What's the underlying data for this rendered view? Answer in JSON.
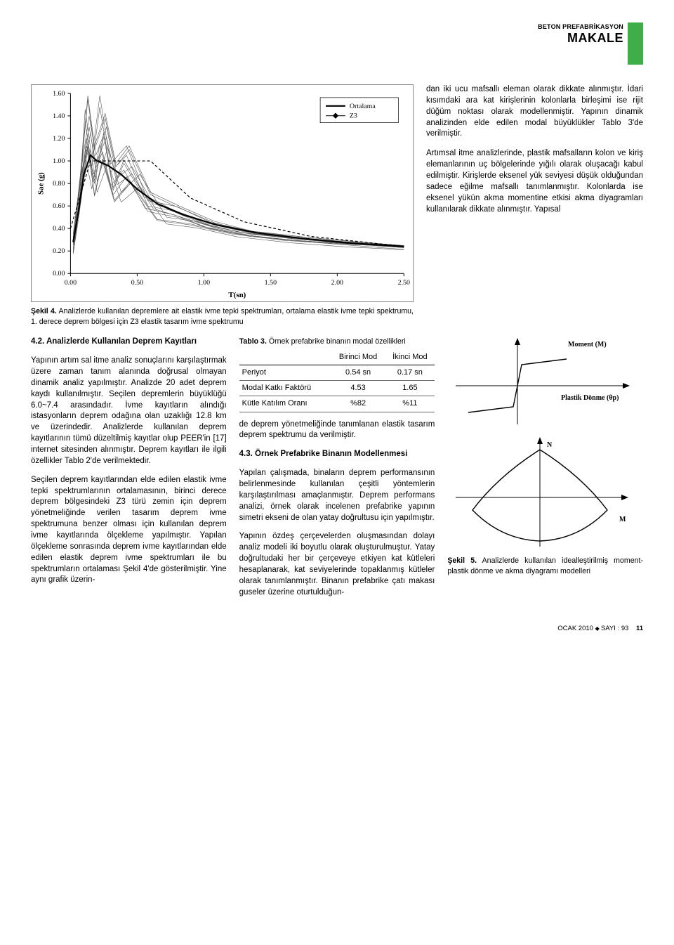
{
  "header": {
    "small": "BETON PREFABRİKASYON",
    "big": "MAKALE",
    "tab_color": "#3fae49"
  },
  "figure4": {
    "type": "line",
    "y_axis_label": "Sae (g)",
    "x_axis_label": "T(sn)",
    "xlim": [
      0,
      2.5
    ],
    "ylim": [
      0,
      1.6
    ],
    "yticks": [
      0.0,
      0.2,
      0.4,
      0.6,
      0.8,
      1.0,
      1.2,
      1.4,
      1.6
    ],
    "ytick_labels": [
      "0.00",
      "0.20",
      "0.40",
      "0.60",
      "0.80",
      "1.00",
      "1.20",
      "1.40",
      "1.60"
    ],
    "xticks": [
      0.0,
      0.5,
      1.0,
      1.5,
      2.0,
      2.5
    ],
    "xtick_labels": [
      "0.00",
      "0.50",
      "1.00",
      "1.50",
      "2.00",
      "2.50"
    ],
    "legend": [
      "Ortalama",
      "Z3"
    ],
    "legend_styles": [
      "thick_black",
      "dash_z3"
    ],
    "background_color": "#ffffff",
    "axis_color": "#000000",
    "thin_line_color": "#555555",
    "avg_line_color": "#000000",
    "avg_line_width": 2.2,
    "thin_line_width": 0.6,
    "z3_dash": "4 3",
    "thin_series_count": 14,
    "thin_series_sample": [
      [
        [
          0.02,
          0.3
        ],
        [
          0.08,
          0.85
        ],
        [
          0.12,
          1.1
        ],
        [
          0.18,
          0.8
        ],
        [
          0.25,
          1.22
        ],
        [
          0.32,
          0.74
        ],
        [
          0.4,
          0.98
        ],
        [
          0.55,
          0.68
        ],
        [
          0.75,
          0.56
        ],
        [
          1.0,
          0.44
        ],
        [
          1.3,
          0.36
        ],
        [
          1.7,
          0.31
        ],
        [
          2.1,
          0.27
        ],
        [
          2.5,
          0.24
        ]
      ],
      [
        [
          0.02,
          0.25
        ],
        [
          0.07,
          0.7
        ],
        [
          0.11,
          1.35
        ],
        [
          0.16,
          0.95
        ],
        [
          0.22,
          1.48
        ],
        [
          0.3,
          0.9
        ],
        [
          0.42,
          1.05
        ],
        [
          0.58,
          0.6
        ],
        [
          0.8,
          0.55
        ],
        [
          1.05,
          0.42
        ],
        [
          1.35,
          0.35
        ],
        [
          1.75,
          0.3
        ],
        [
          2.15,
          0.26
        ],
        [
          2.5,
          0.23
        ]
      ],
      [
        [
          0.02,
          0.2
        ],
        [
          0.06,
          0.55
        ],
        [
          0.1,
          0.95
        ],
        [
          0.15,
          1.25
        ],
        [
          0.2,
          0.82
        ],
        [
          0.28,
          1.12
        ],
        [
          0.38,
          0.72
        ],
        [
          0.52,
          0.88
        ],
        [
          0.72,
          0.5
        ],
        [
          0.95,
          0.46
        ],
        [
          1.25,
          0.37
        ],
        [
          1.65,
          0.31
        ],
        [
          2.05,
          0.27
        ],
        [
          2.5,
          0.24
        ]
      ],
      [
        [
          0.02,
          0.35
        ],
        [
          0.09,
          1.0
        ],
        [
          0.14,
          1.4
        ],
        [
          0.19,
          1.05
        ],
        [
          0.27,
          1.3
        ],
        [
          0.35,
          0.85
        ],
        [
          0.46,
          0.95
        ],
        [
          0.62,
          0.62
        ],
        [
          0.85,
          0.53
        ],
        [
          1.1,
          0.43
        ],
        [
          1.4,
          0.35
        ],
        [
          1.8,
          0.3
        ],
        [
          2.2,
          0.26
        ],
        [
          2.5,
          0.23
        ]
      ],
      [
        [
          0.02,
          0.18
        ],
        [
          0.05,
          0.45
        ],
        [
          0.09,
          0.8
        ],
        [
          0.13,
          1.15
        ],
        [
          0.18,
          0.7
        ],
        [
          0.24,
          1.02
        ],
        [
          0.33,
          0.65
        ],
        [
          0.45,
          0.82
        ],
        [
          0.65,
          0.48
        ],
        [
          0.9,
          0.44
        ],
        [
          1.2,
          0.36
        ],
        [
          1.6,
          0.3
        ],
        [
          2.0,
          0.27
        ],
        [
          2.5,
          0.24
        ]
      ],
      [
        [
          0.02,
          0.28
        ],
        [
          0.08,
          0.92
        ],
        [
          0.13,
          1.55
        ],
        [
          0.18,
          1.1
        ],
        [
          0.26,
          1.38
        ],
        [
          0.34,
          0.95
        ],
        [
          0.44,
          1.1
        ],
        [
          0.6,
          0.7
        ],
        [
          0.82,
          0.58
        ],
        [
          1.08,
          0.45
        ],
        [
          1.38,
          0.36
        ],
        [
          1.78,
          0.31
        ],
        [
          2.18,
          0.27
        ],
        [
          2.5,
          0.24
        ]
      ],
      [
        [
          0.02,
          0.22
        ],
        [
          0.07,
          0.6
        ],
        [
          0.11,
          1.05
        ],
        [
          0.16,
          0.75
        ],
        [
          0.22,
          1.15
        ],
        [
          0.3,
          0.78
        ],
        [
          0.4,
          0.92
        ],
        [
          0.56,
          0.58
        ],
        [
          0.78,
          0.52
        ],
        [
          1.02,
          0.41
        ],
        [
          1.32,
          0.34
        ],
        [
          1.72,
          0.29
        ],
        [
          2.12,
          0.26
        ],
        [
          2.5,
          0.23
        ]
      ],
      [
        [
          0.02,
          0.26
        ],
        [
          0.08,
          0.78
        ],
        [
          0.12,
          1.2
        ],
        [
          0.17,
          0.88
        ],
        [
          0.24,
          1.08
        ],
        [
          0.32,
          0.7
        ],
        [
          0.42,
          0.86
        ],
        [
          0.58,
          0.55
        ],
        [
          0.8,
          0.5
        ],
        [
          1.04,
          0.4
        ],
        [
          1.34,
          0.33
        ],
        [
          1.74,
          0.29
        ],
        [
          2.14,
          0.26
        ],
        [
          2.5,
          0.23
        ]
      ]
    ],
    "avg_series": [
      [
        0.02,
        0.28
      ],
      [
        0.06,
        0.55
      ],
      [
        0.1,
        0.88
      ],
      [
        0.15,
        1.05
      ],
      [
        0.2,
        1.0
      ],
      [
        0.28,
        0.96
      ],
      [
        0.38,
        0.88
      ],
      [
        0.5,
        0.75
      ],
      [
        0.65,
        0.62
      ],
      [
        0.85,
        0.52
      ],
      [
        1.1,
        0.43
      ],
      [
        1.4,
        0.36
      ],
      [
        1.75,
        0.31
      ],
      [
        2.1,
        0.27
      ],
      [
        2.5,
        0.24
      ]
    ],
    "z3_series": [
      [
        0.0,
        0.4
      ],
      [
        0.15,
        1.0
      ],
      [
        0.6,
        1.0
      ],
      [
        0.9,
        0.67
      ],
      [
        1.3,
        0.46
      ],
      [
        1.8,
        0.33
      ],
      [
        2.5,
        0.24
      ]
    ],
    "caption_label": "Şekil 4.",
    "caption": " Analizlerde kullanılan depremlere ait elastik ivme tepki spektrumları, ortalama elastik ivme tepki spektrumu, 1. derece deprem bölgesi için Z3 elastik tasarım ivme spektrumu"
  },
  "top_right_text": {
    "p1": "dan iki ucu mafsallı eleman olarak dikkate alınmıştır. İdari kısımdaki ara kat kirişlerinin kolonlarla birleşimi ise rijit düğüm noktası olarak modellenmiştir. Yapının dinamik analizinden elde edilen modal büyüklükler Tablo 3'de verilmiştir.",
    "p2": "Artımsal itme analizlerinde, plastik mafsalların kolon ve kiriş elemanlarının uç bölgelerinde yığılı olarak oluşacağı kabul edilmiştir. Kirişlerde eksenel yük seviyesi düşük olduğundan sadece eğilme mafsallı tanımlanmıştır. Kolonlarda ise eksenel yükün akma momentine etkisi akma diyagramları kullanılarak dikkate alınmıştır. Yapısal"
  },
  "section42": {
    "head": "4.2. Analizlerde Kullanılan Deprem Kayıtları",
    "p1": "Yapının artım sal itme analiz sonuçlarını karşılaştırmak üzere zaman tanım alanında doğrusal olmayan dinamik analiz yapılmıştır. Analizde 20 adet deprem kaydı kullanılmıştır. Seçilen depremlerin büyüklüğü 6.0~7.4 arasındadır. İvme kayıtların alındığı istasyonların deprem odağına olan uzaklığı 12.8 km ve üzerindedir. Analizlerde kullanılan deprem kayıtlarının tümü düzeltilmiş kayıtlar olup PEER'in [17] internet sitesinden alınmıştır. Deprem kayıtları ile ilgili özellikler Tablo 2'de verilmektedir.",
    "p2": "Seçilen deprem kayıtlarından elde edilen elastik ivme tepki spektrumlarının ortalamasının, birinci derece deprem bölgesindeki Z3 türü zemin için deprem yönetmeliğinde verilen tasarım deprem ivme spektrumuna benzer olması için kullanılan deprem ivme kayıtlarında ölçekleme yapılmıştır. Yapılan ölçekleme sonrasında deprem ivme kayıtlarından elde edilen elastik deprem ivme spektrumları ile bu spektrumların ortalaması Şekil 4'de gösterilmiştir. Yine aynı grafik üzerin-"
  },
  "table3": {
    "caption_label": "Tablo 3.",
    "caption": " Örnek prefabrike binanın modal özellikleri",
    "columns": [
      "",
      "Birinci Mod",
      "İkinci Mod"
    ],
    "rows": [
      [
        "Periyot",
        "0.54 sn",
        "0.17 sn"
      ],
      [
        "Modal Katkı Faktörü",
        "4.53",
        "1.65"
      ],
      [
        "Kütle Katılım Oranı",
        "%82",
        "%11"
      ]
    ]
  },
  "mid_text": {
    "p1": "de deprem yönetmeliğinde tanımlanan elastik tasarım deprem spektrumu da verilmiştir.",
    "head43": "4.3. Örnek Prefabrike Binanın Modellenmesi",
    "p2": "Yapılan çalışmada, binaların deprem performansının belirlenmesinde kullanılan çeşitli yöntemlerin karşılaştırılması amaçlanmıştır. Deprem performans analizi, örnek olarak incelenen prefabrike yapının simetri ekseni de olan yatay doğrultusu için yapılmıştır.",
    "p3": "Yapının özdeş çerçevelerden oluşmasından dolayı analiz modeli iki boyutlu olarak oluşturulmuştur. Yatay doğrultudaki her bir çerçeveye etkiyen kat kütleleri hesaplanarak, kat seviyelerinde topaklanmış kütleler olarak tanımlanmıştır. Binanın prefabrike çatı makası guseler üzerine oturtulduğun-"
  },
  "figure5": {
    "type": "diagram",
    "moment_label": "Moment (M)",
    "rotation_label": "Plastik Dönme (θp)",
    "n_label": "N",
    "m_label": "M",
    "line_color": "#000000",
    "line_width": 1.4,
    "axis_arrow_length": 8,
    "caption_label": "Şekil 5.",
    "caption": " Analizlerde kullanılan idealleştirilmiş moment-plastik dönme ve akma diyagramı modelleri"
  },
  "footer": {
    "text_left": "OCAK 2010",
    "text_mid": "SAYI : 93",
    "page": "11"
  }
}
